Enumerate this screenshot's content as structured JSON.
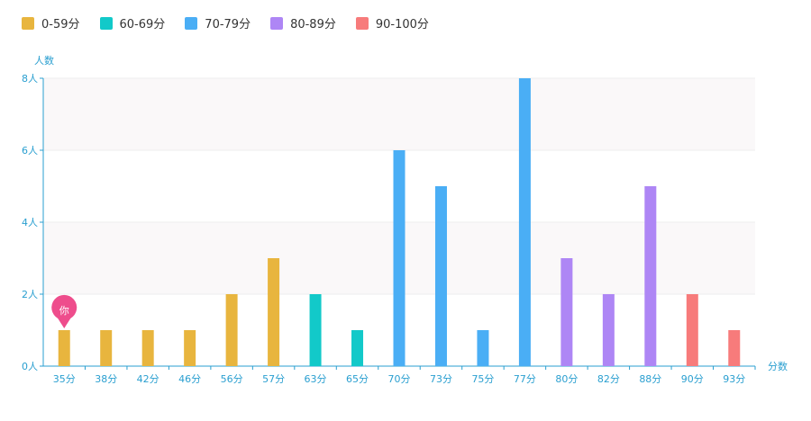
{
  "chart_data": {
    "type": "bar",
    "categories": [
      "35分",
      "38分",
      "42分",
      "46分",
      "56分",
      "57分",
      "63分",
      "65分",
      "70分",
      "73分",
      "75分",
      "77分",
      "80分",
      "82分",
      "88分",
      "90分",
      "93分"
    ],
    "values": [
      1,
      1,
      1,
      1,
      2,
      3,
      2,
      1,
      6,
      5,
      1,
      8,
      3,
      2,
      5,
      2,
      1
    ],
    "series_groups": [
      "0-59分",
      "0-59分",
      "0-59分",
      "0-59分",
      "0-59分",
      "0-59分",
      "60-69分",
      "60-69分",
      "70-79分",
      "70-79分",
      "70-79分",
      "70-79分",
      "80-89分",
      "80-89分",
      "80-89分",
      "90-100分",
      "90-100分"
    ],
    "legend": [
      {
        "name": "0-59分",
        "color": "#E8B53E"
      },
      {
        "name": "60-69分",
        "color": "#12C9C9"
      },
      {
        "name": "70-79分",
        "color": "#4AAEF5"
      },
      {
        "name": "80-89分",
        "color": "#AE86F5"
      },
      {
        "name": "90-100分",
        "color": "#F77B7B"
      }
    ],
    "ylabel": "人数",
    "xlabel": "分数",
    "ylim": [
      0,
      8
    ],
    "yticks": [
      "0人",
      "2人",
      "4人",
      "6人",
      "8人"
    ],
    "yticks_values": [
      0,
      2,
      4,
      6,
      8
    ],
    "marker": {
      "category": "35分",
      "text": "你",
      "color": "#EE4D8C"
    },
    "legend_position": "top-left",
    "grid": true
  }
}
